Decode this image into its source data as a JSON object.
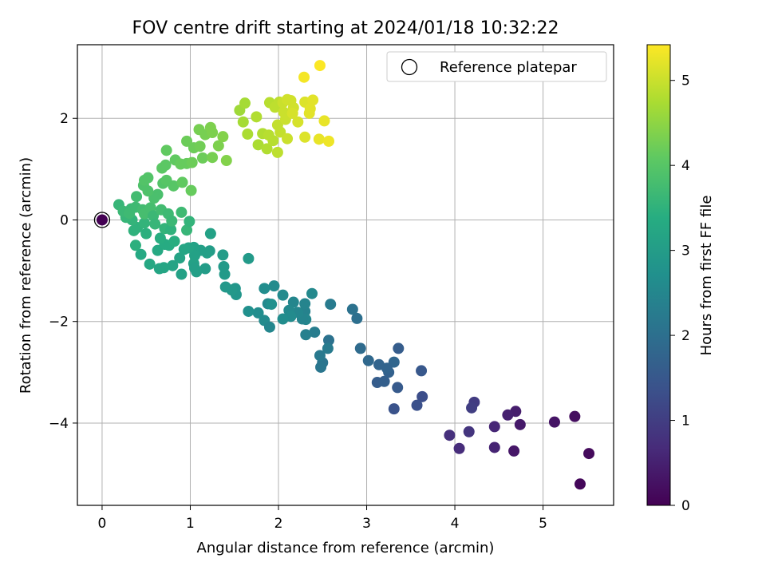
{
  "chart_data": {
    "type": "scatter",
    "title": "FOV centre drift starting at 2024/01/18 10:32:22",
    "xlabel": "Angular distance from reference (arcmin)",
    "ylabel": "Rotation from reference (arcmin)",
    "xlim": [
      -0.28,
      5.8
    ],
    "ylim": [
      -5.62,
      3.45
    ],
    "xticks": [
      0,
      1,
      2,
      3,
      4,
      5
    ],
    "xtick_labels": [
      "0",
      "1",
      "2",
      "3",
      "4",
      "5"
    ],
    "yticks": [
      2,
      0,
      -2,
      -4
    ],
    "ytick_labels": [
      "2",
      "0",
      "−2",
      "−4"
    ],
    "grid": true,
    "legend": {
      "position": "top-right",
      "entries": [
        "Reference platepar"
      ]
    },
    "colorbar": {
      "label": "Hours from first FF file",
      "colormap": "viridis",
      "range": [
        0,
        5.42
      ],
      "ticks": [
        0,
        1,
        2,
        3,
        4,
        5
      ],
      "tick_labels": [
        "0",
        "1",
        "2",
        "3",
        "4",
        "5"
      ]
    },
    "reference_point": {
      "x": 0,
      "y": 0,
      "hours": 0,
      "label": "Reference platepar"
    },
    "series": [
      {
        "points": [
          [
            5.42,
            -5.2,
            0.1
          ],
          [
            5.52,
            -4.6,
            0.15
          ],
          [
            5.36,
            -3.87,
            0.2
          ],
          [
            5.13,
            -3.98,
            0.3
          ],
          [
            4.67,
            -4.55,
            0.35
          ],
          [
            4.74,
            -4.03,
            0.4
          ],
          [
            4.69,
            -3.77,
            0.45
          ],
          [
            4.6,
            -3.84,
            0.5
          ],
          [
            4.45,
            -4.48,
            0.55
          ],
          [
            4.45,
            -4.07,
            0.6
          ],
          [
            4.05,
            -4.5,
            0.7
          ],
          [
            3.94,
            -4.24,
            0.75
          ],
          [
            4.16,
            -4.17,
            0.85
          ],
          [
            4.22,
            -3.59,
            0.95
          ],
          [
            4.19,
            -3.7,
            1.0
          ],
          [
            3.63,
            -3.48,
            1.3
          ],
          [
            3.57,
            -3.65,
            1.35
          ],
          [
            3.31,
            -3.72,
            1.4
          ],
          [
            3.62,
            -2.97,
            1.5
          ],
          [
            3.36,
            -2.53,
            1.6
          ],
          [
            3.35,
            -3.3,
            1.55
          ],
          [
            3.12,
            -3.2,
            1.6
          ],
          [
            3.2,
            -3.18,
            1.65
          ],
          [
            3.25,
            -3.0,
            1.7
          ],
          [
            3.14,
            -2.85,
            1.75
          ],
          [
            3.31,
            -2.8,
            1.8
          ],
          [
            3.23,
            -2.92,
            1.75
          ],
          [
            3.02,
            -2.77,
            1.85
          ],
          [
            2.93,
            -2.53,
            1.9
          ],
          [
            2.89,
            -1.94,
            2.0
          ],
          [
            2.84,
            -1.76,
            2.05
          ],
          [
            2.57,
            -2.37,
            2.05
          ],
          [
            2.5,
            -2.81,
            2.1
          ],
          [
            2.48,
            -2.9,
            2.15
          ],
          [
            2.47,
            -2.67,
            2.2
          ],
          [
            2.56,
            -2.53,
            2.25
          ],
          [
            2.59,
            -1.66,
            2.25
          ],
          [
            2.41,
            -2.21,
            2.3
          ],
          [
            2.31,
            -2.26,
            2.35
          ],
          [
            2.3,
            -1.8,
            2.4
          ],
          [
            2.3,
            -1.65,
            2.45
          ],
          [
            2.31,
            -1.96,
            2.5
          ],
          [
            2.38,
            -1.45,
            2.55
          ],
          [
            2.27,
            -1.95,
            2.45
          ],
          [
            2.22,
            -1.82,
            2.5
          ],
          [
            2.17,
            -1.62,
            2.5
          ],
          [
            2.12,
            -1.78,
            2.55
          ],
          [
            2.14,
            -1.9,
            2.6
          ],
          [
            2.05,
            -1.48,
            2.6
          ],
          [
            2.05,
            -1.95,
            2.65
          ],
          [
            1.95,
            -1.3,
            2.6
          ],
          [
            1.88,
            -1.65,
            2.55
          ],
          [
            1.84,
            -1.35,
            2.65
          ],
          [
            1.92,
            -1.66,
            2.7
          ],
          [
            1.84,
            -1.98,
            2.6
          ],
          [
            1.77,
            -1.83,
            2.65
          ],
          [
            1.9,
            -2.11,
            2.5
          ],
          [
            1.66,
            -1.8,
            2.7
          ],
          [
            1.66,
            -0.76,
            2.95
          ],
          [
            1.52,
            -1.47,
            2.85
          ],
          [
            1.51,
            -1.35,
            2.85
          ],
          [
            1.47,
            -1.38,
            2.9
          ],
          [
            1.4,
            -1.32,
            2.9
          ],
          [
            1.39,
            -1.07,
            2.95
          ],
          [
            1.37,
            -0.69,
            3.0
          ],
          [
            1.38,
            -0.92,
            2.95
          ],
          [
            1.23,
            -0.27,
            3.1
          ],
          [
            1.22,
            -0.61,
            3.0
          ],
          [
            1.19,
            -0.65,
            3.05
          ],
          [
            1.17,
            -0.96,
            3.0
          ],
          [
            1.12,
            -0.6,
            3.05
          ],
          [
            1.04,
            -0.54,
            3.1
          ],
          [
            1.05,
            -0.7,
            3.1
          ],
          [
            1.07,
            -1.02,
            3.05
          ],
          [
            1.04,
            -0.86,
            3.1
          ],
          [
            1.05,
            -0.95,
            3.05
          ],
          [
            0.98,
            -0.55,
            3.15
          ],
          [
            0.88,
            -0.75,
            3.15
          ],
          [
            0.9,
            -1.07,
            3.1
          ],
          [
            0.93,
            -0.58,
            3.2
          ],
          [
            0.8,
            -0.9,
            3.15
          ],
          [
            0.7,
            -0.94,
            3.2
          ],
          [
            0.65,
            -0.96,
            3.2
          ],
          [
            0.54,
            -0.87,
            3.25
          ],
          [
            0.44,
            -0.68,
            3.3
          ],
          [
            0.63,
            -0.6,
            3.3
          ],
          [
            0.71,
            -0.48,
            3.35
          ],
          [
            0.76,
            -0.5,
            3.35
          ],
          [
            0.82,
            -0.42,
            3.4
          ],
          [
            0.66,
            -0.36,
            3.4
          ],
          [
            0.5,
            -0.27,
            3.45
          ],
          [
            0.38,
            -0.5,
            3.45
          ],
          [
            0.36,
            -0.21,
            3.5
          ],
          [
            0.4,
            -0.15,
            3.5
          ],
          [
            0.48,
            -0.06,
            3.55
          ],
          [
            0.34,
            0.0,
            3.55
          ],
          [
            0.27,
            0.05,
            3.6
          ],
          [
            0.19,
            0.3,
            3.6
          ],
          [
            0.24,
            0.17,
            3.65
          ],
          [
            0.33,
            0.22,
            3.65
          ],
          [
            0.31,
            0.13,
            3.7
          ],
          [
            0.38,
            0.25,
            3.7
          ],
          [
            0.39,
            0.46,
            3.75
          ],
          [
            0.46,
            0.2,
            3.75
          ],
          [
            0.48,
            0.12,
            3.8
          ],
          [
            0.55,
            0.24,
            3.8
          ],
          [
            0.58,
            0.08,
            3.65
          ],
          [
            0.6,
            -0.08,
            3.6
          ],
          [
            0.71,
            -0.17,
            3.55
          ],
          [
            0.78,
            -0.19,
            3.5
          ],
          [
            0.67,
            0.2,
            3.75
          ],
          [
            0.75,
            0.12,
            3.7
          ],
          [
            0.79,
            -0.02,
            3.65
          ],
          [
            0.9,
            0.15,
            3.7
          ],
          [
            0.96,
            -0.2,
            3.6
          ],
          [
            0.99,
            -0.03,
            3.55
          ],
          [
            0.63,
            0.5,
            3.85
          ],
          [
            0.59,
            0.43,
            3.85
          ],
          [
            0.52,
            0.57,
            3.9
          ],
          [
            0.47,
            0.68,
            3.9
          ],
          [
            0.48,
            0.78,
            3.95
          ],
          [
            0.52,
            0.83,
            3.95
          ],
          [
            0.69,
            0.72,
            3.95
          ],
          [
            0.73,
            0.78,
            4.0
          ],
          [
            0.68,
            1.02,
            4.05
          ],
          [
            0.72,
            1.08,
            4.05
          ],
          [
            0.81,
            0.67,
            4.0
          ],
          [
            0.83,
            1.18,
            4.1
          ],
          [
            0.73,
            1.37,
            4.1
          ],
          [
            0.89,
            1.1,
            4.15
          ],
          [
            0.91,
            0.74,
            4.1
          ],
          [
            0.96,
            1.11,
            4.15
          ],
          [
            1.01,
            0.58,
            4.15
          ],
          [
            1.02,
            1.13,
            4.2
          ],
          [
            1.04,
            1.42,
            4.2
          ],
          [
            0.96,
            1.55,
            4.2
          ],
          [
            1.11,
            1.45,
            4.25
          ],
          [
            1.14,
            1.22,
            4.2
          ],
          [
            1.1,
            1.78,
            4.3
          ],
          [
            1.17,
            1.68,
            4.3
          ],
          [
            1.23,
            1.82,
            4.35
          ],
          [
            1.25,
            1.72,
            4.35
          ],
          [
            1.25,
            1.23,
            4.3
          ],
          [
            1.32,
            1.46,
            4.35
          ],
          [
            1.37,
            1.64,
            4.4
          ],
          [
            1.41,
            1.17,
            4.4
          ],
          [
            1.56,
            2.16,
            4.65
          ],
          [
            1.62,
            2.3,
            4.7
          ],
          [
            1.6,
            1.93,
            4.7
          ],
          [
            1.65,
            1.69,
            4.75
          ],
          [
            1.75,
            2.03,
            4.8
          ],
          [
            1.77,
            1.48,
            4.75
          ],
          [
            1.82,
            1.7,
            4.8
          ],
          [
            1.87,
            1.4,
            4.8
          ],
          [
            1.9,
            2.31,
            4.85
          ],
          [
            1.89,
            1.67,
            4.85
          ],
          [
            1.96,
            2.22,
            4.9
          ],
          [
            1.94,
            1.56,
            4.85
          ],
          [
            2.01,
            2.32,
            4.9
          ],
          [
            1.99,
            1.87,
            4.95
          ],
          [
            2.02,
            1.73,
            4.95
          ],
          [
            2.06,
            2.12,
            5.0
          ],
          [
            2.05,
            2.31,
            5.0
          ],
          [
            2.08,
            1.98,
            5.0
          ],
          [
            2.1,
            2.37,
            5.05
          ],
          [
            2.14,
            2.35,
            5.05
          ],
          [
            2.17,
            2.21,
            5.05
          ],
          [
            1.99,
            1.33,
            4.9
          ],
          [
            2.1,
            1.6,
            5.0
          ],
          [
            2.16,
            2.1,
            5.1
          ],
          [
            2.22,
            1.93,
            5.1
          ],
          [
            2.3,
            1.63,
            5.15
          ],
          [
            2.3,
            2.32,
            5.15
          ],
          [
            2.36,
            2.19,
            5.2
          ],
          [
            2.39,
            2.36,
            5.2
          ],
          [
            2.35,
            2.1,
            5.2
          ],
          [
            2.46,
            1.59,
            5.25
          ],
          [
            2.52,
            1.95,
            5.25
          ],
          [
            2.57,
            1.55,
            5.3
          ],
          [
            2.29,
            2.81,
            5.35
          ],
          [
            2.47,
            3.04,
            5.4
          ]
        ]
      }
    ]
  }
}
